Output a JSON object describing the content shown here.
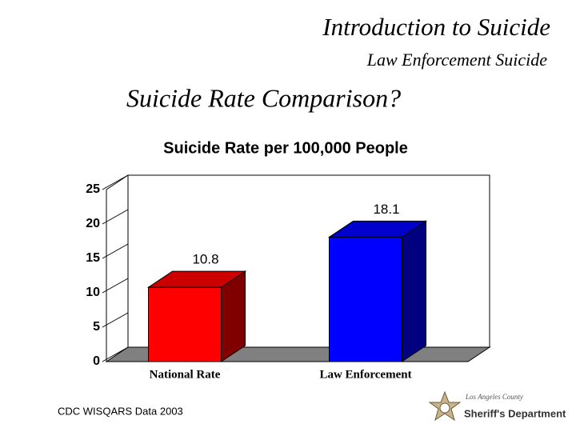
{
  "slide": {
    "title": "Introduction to Suicide",
    "subtitle": "Law Enforcement Suicide",
    "heading": "Suicide Rate Comparison?",
    "source": "CDC WISQARS Data 2003",
    "logo_top": "Los Angeles County",
    "logo_bottom": "Sheriff's Department"
  },
  "chart_data": {
    "type": "bar3d",
    "title": "Suicide Rate per 100,000 People",
    "categories": [
      "National Rate",
      "Law Enforcement"
    ],
    "values": [
      10.8,
      18.1
    ],
    "colors": [
      "#ff0000",
      "#0000ff"
    ],
    "ylim": [
      0,
      25
    ],
    "yticks": [
      0,
      5,
      10,
      15,
      20,
      25
    ]
  }
}
